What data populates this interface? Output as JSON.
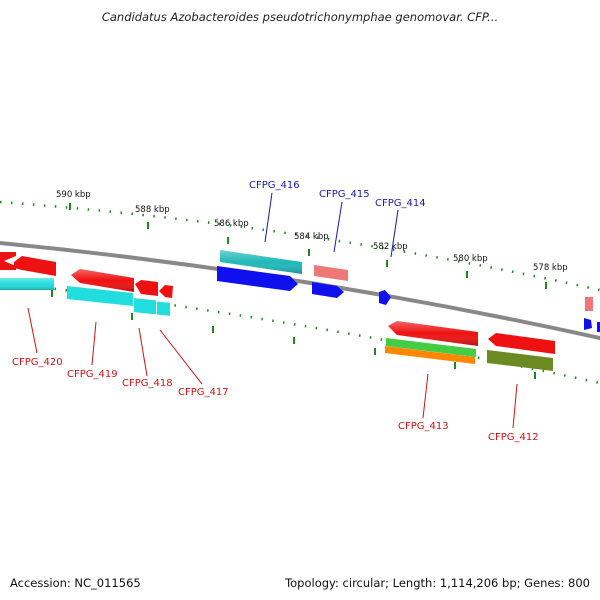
{
  "title": "Candidatus Azobacteroides pseudotrichonymphae genomovar. CFP...",
  "footer": {
    "accession": "Accession: NC_011565",
    "summary": "Topology: circular; Length: 1,114,206 bp; Genes: 800"
  },
  "scale_labels": [
    "590 kbp",
    "588 kbp",
    "586 kbp",
    "584 kbp",
    "582 kbp",
    "580 kbp",
    "578 kbp"
  ],
  "gene_labels": {
    "top": [
      "CFPG_416",
      "CFPG_415",
      "CFPG_414"
    ],
    "bottom": [
      "CFPG_420",
      "CFPG_419",
      "CFPG_418",
      "CFPG_417",
      "CFPG_413",
      "CFPG_412"
    ]
  },
  "colors": {
    "backbone": "#888888",
    "tick": "#1e8a1e",
    "red": "#ee1111",
    "cyan": "#22dddd",
    "teal": "#20b8b8",
    "blue": "#1010ee",
    "salmon": "#ee7777",
    "green": "#44cc44",
    "orange": "#ff8800",
    "olive": "#6b8a22",
    "top_label": "#1a1aa8",
    "bottom_label": "#c41616"
  }
}
